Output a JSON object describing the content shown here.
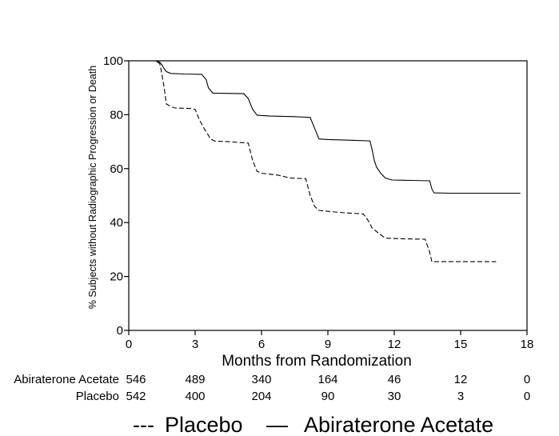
{
  "chart_data": {
    "type": "line",
    "title": "",
    "xlabel": "Months from Randomization",
    "ylabel": "% Subjects without Radiographic Progression or Death",
    "xlim": [
      0,
      18
    ],
    "ylim": [
      0,
      100
    ],
    "x_ticks": [
      0,
      3,
      6,
      9,
      12,
      15,
      18
    ],
    "y_ticks": [
      0,
      20,
      40,
      60,
      80,
      100
    ],
    "grid": false,
    "series": [
      {
        "name": "Abiraterone Acetate",
        "style": "solid",
        "points": [
          [
            0,
            100
          ],
          [
            1.2,
            100
          ],
          [
            1.4,
            99.5
          ],
          [
            1.5,
            98.5
          ],
          [
            1.6,
            97
          ],
          [
            1.7,
            96
          ],
          [
            1.9,
            95.3
          ],
          [
            2.5,
            95.1
          ],
          [
            3.3,
            95
          ],
          [
            3.5,
            93
          ],
          [
            3.6,
            90
          ],
          [
            3.8,
            88
          ],
          [
            5.2,
            87.8
          ],
          [
            5.4,
            86
          ],
          [
            5.6,
            82
          ],
          [
            5.8,
            79.8
          ],
          [
            6.4,
            79.5
          ],
          [
            7.5,
            79.3
          ],
          [
            8.2,
            79
          ],
          [
            8.4,
            75
          ],
          [
            8.6,
            71
          ],
          [
            9.0,
            70.8
          ],
          [
            10.2,
            70.5
          ],
          [
            10.9,
            70.3
          ],
          [
            11.0,
            67
          ],
          [
            11.1,
            63
          ],
          [
            11.2,
            60.5
          ],
          [
            11.4,
            58.2
          ],
          [
            11.6,
            56.5
          ],
          [
            11.9,
            55.8
          ],
          [
            12.4,
            55.7
          ],
          [
            13.6,
            55.5
          ],
          [
            13.7,
            52.5
          ],
          [
            13.8,
            51
          ],
          [
            14.5,
            50.9
          ],
          [
            17.7,
            50.9
          ]
        ]
      },
      {
        "name": "Placebo",
        "style": "dashed",
        "points": [
          [
            0,
            100
          ],
          [
            1.2,
            100
          ],
          [
            1.4,
            99
          ],
          [
            1.5,
            95
          ],
          [
            1.6,
            90
          ],
          [
            1.7,
            84
          ],
          [
            1.9,
            83
          ],
          [
            2.1,
            82.5
          ],
          [
            2.8,
            82.3
          ],
          [
            3.0,
            82
          ],
          [
            3.2,
            78
          ],
          [
            3.4,
            75
          ],
          [
            3.7,
            71
          ],
          [
            3.9,
            70.2
          ],
          [
            4.5,
            70
          ],
          [
            5.4,
            69.5
          ],
          [
            5.6,
            63
          ],
          [
            5.8,
            59
          ],
          [
            6.0,
            58.3
          ],
          [
            6.8,
            57.5
          ],
          [
            7.3,
            56.5
          ],
          [
            8.0,
            56.3
          ],
          [
            8.2,
            50
          ],
          [
            8.4,
            46
          ],
          [
            8.6,
            44.5
          ],
          [
            9.2,
            44
          ],
          [
            9.8,
            43.6
          ],
          [
            10.6,
            43.2
          ],
          [
            10.8,
            41
          ],
          [
            11.0,
            38
          ],
          [
            11.3,
            36
          ],
          [
            11.6,
            34.2
          ],
          [
            12.3,
            34
          ],
          [
            13.4,
            33.8
          ],
          [
            13.6,
            29
          ],
          [
            13.7,
            25.5
          ],
          [
            14.5,
            25.5
          ],
          [
            16.6,
            25.5
          ]
        ]
      }
    ],
    "risk_table": {
      "x_positions": [
        0,
        3,
        6,
        9,
        12,
        15,
        18
      ],
      "rows": [
        {
          "label": "Abiraterone Acetate",
          "counts": [
            "546",
            "489",
            "340",
            "164",
            "46",
            "12",
            "0"
          ]
        },
        {
          "label": "Placebo",
          "counts": [
            "542",
            "400",
            "204",
            "90",
            "30",
            "3",
            "0"
          ]
        }
      ]
    },
    "legend": {
      "position": "bottom",
      "entries": [
        {
          "marker": "---",
          "label": "Placebo",
          "style": "dashed"
        },
        {
          "marker": "—",
          "label": "Abiraterone Acetate",
          "style": "solid"
        }
      ]
    },
    "line_color": "#000000"
  }
}
